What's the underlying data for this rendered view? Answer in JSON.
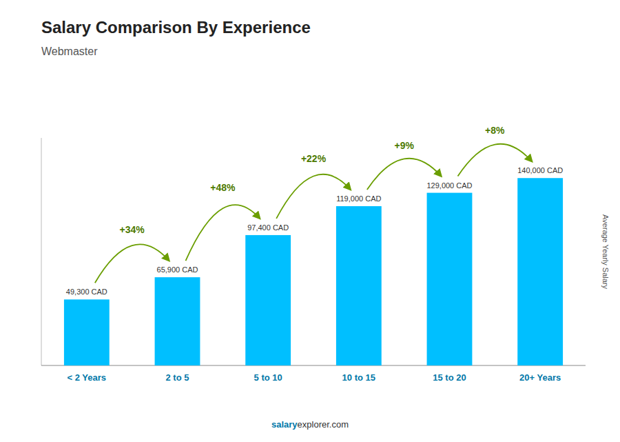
{
  "chart_data": {
    "type": "bar",
    "title": "Salary Comparison By Experience",
    "subtitle": "Webmaster",
    "ylabel": "Average Yearly Salary",
    "categories": [
      "< 2 Years",
      "2 to 5",
      "5 to 10",
      "10 to 15",
      "15 to 20",
      "20+ Years"
    ],
    "values": [
      49300,
      65900,
      97400,
      119000,
      129000,
      140000
    ],
    "value_labels": [
      "49,300 CAD",
      "65,900 CAD",
      "97,400 CAD",
      "119,000 CAD",
      "129,000 CAD",
      "140,000 CAD"
    ],
    "data_labels": true,
    "annotations": [
      "+34%",
      "+48%",
      "+22%",
      "+9%",
      "+8%"
    ],
    "footer": [
      "salary",
      "explorer.com"
    ],
    "color": "#00bfff",
    "ylim": [
      0,
      170000
    ],
    "tick_labels": "x",
    "grid": false
  }
}
